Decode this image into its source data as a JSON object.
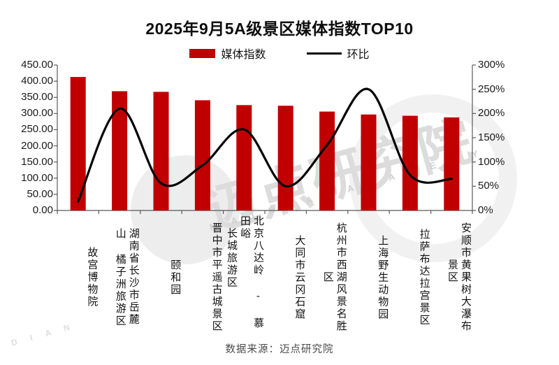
{
  "title": "2025年9月5A级景区媒体指数TOP10",
  "legend": {
    "bar_label": "媒体指数",
    "line_label": "环比"
  },
  "footer_source": "数据来源：迈点研究院",
  "watermark": {
    "cjk": "迈点研究院",
    "latin": "M A I D I A N   A C A D E M Y",
    "latin_fragment": "M A I D I A N"
  },
  "colors": {
    "bar": "#c00000",
    "line": "#000000",
    "axis": "#595959",
    "tick_label": "#1a1a1a"
  },
  "chart_data": {
    "type": "bar",
    "subtype": "combo-bar-line",
    "title": "2025年9月5A级景区媒体指数TOP10",
    "categories": [
      "故宫博物院",
      "湖南省长沙市岳麓山 橘子洲旅游区",
      "颐和园",
      "晋中市平遥古城景区",
      "北京八达岭 - 慕田峪长城旅游区",
      "大同市云冈石窟",
      "杭州市西湖风景名胜区",
      "上海野生动物园",
      "拉萨布达拉宫景区",
      "安顺市黄果树大瀑布景区"
    ],
    "categories_display": [
      "故宫博物院",
      "湖南省长沙市岳麓\n山 橘子洲旅游区",
      "颐和园",
      "晋中市平遥古城景区",
      "北京八达岭 - 慕田峪\n　长城旅游区",
      "大同市云冈石窟",
      "杭州市西湖风景名胜\n　　　　区",
      "上海野生动物园",
      "拉萨布达拉宫景区",
      "安顺市黄果树大瀑布\n　　　景区"
    ],
    "series": [
      {
        "name": "媒体指数",
        "type": "bar",
        "axis": "left",
        "color": "#c00000",
        "values": [
          413,
          369,
          367,
          341,
          326,
          324,
          306,
          297,
          293,
          288
        ]
      },
      {
        "name": "环比",
        "type": "line",
        "axis": "right",
        "color": "#000000",
        "values_percent": [
          18,
          210,
          56,
          93,
          167,
          50,
          135,
          250,
          73,
          65
        ]
      }
    ],
    "left_axis": {
      "min": 0,
      "max": 450,
      "step": 50,
      "format": "0.00"
    },
    "right_axis": {
      "min": 0,
      "max": 300,
      "step": 50,
      "format": "0%"
    },
    "grid": false,
    "legend_position": "top",
    "data_source": "数据来源：迈点研究院"
  }
}
